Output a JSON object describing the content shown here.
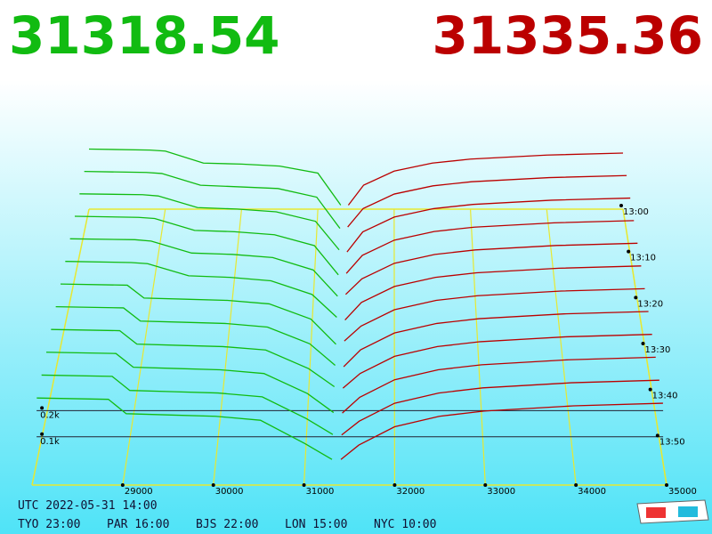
{
  "chart_data": {
    "type": "depth3d",
    "bid": 31318.54,
    "ask": 31335.36,
    "bid_color": "#11bb11",
    "ask_color": "#bb0000",
    "grid_color": "#e8e830",
    "xlim": [
      28000,
      35000
    ],
    "xticks": [
      29000,
      30000,
      31000,
      32000,
      33000,
      34000,
      35000
    ],
    "zticks": [
      {
        "value": 100,
        "label": "0.1k"
      },
      {
        "value": 200,
        "label": "0.2k"
      }
    ],
    "time_ticks": [
      "13:00",
      "13:10",
      "13:20",
      "13:30",
      "13:40",
      "13:50"
    ],
    "bid_prices": [
      28000,
      28800,
      29000,
      29500,
      30000,
      30500,
      31000,
      31300
    ],
    "ask_prices": [
      31400,
      31600,
      32000,
      32500,
      33000,
      34000,
      35000
    ],
    "snapshots": [
      {
        "bid": [
          300,
          295,
          290,
          230,
          225,
          215,
          180,
          20
        ],
        "ask": [
          20,
          120,
          190,
          230,
          250,
          270,
          280
        ]
      },
      {
        "bid": [
          295,
          290,
          285,
          228,
          220,
          212,
          170,
          18
        ],
        "ask": [
          25,
          115,
          185,
          225,
          245,
          265,
          275
        ]
      },
      {
        "bid": [
          290,
          286,
          280,
          225,
          218,
          205,
          160,
          25
        ],
        "ask": [
          15,
          110,
          180,
          220,
          240,
          260,
          270
        ]
      },
      {
        "bid": [
          285,
          280,
          275,
          220,
          214,
          200,
          150,
          15
        ],
        "ask": [
          22,
          105,
          175,
          215,
          235,
          255,
          265
        ]
      },
      {
        "bid": [
          280,
          276,
          270,
          216,
          210,
          196,
          140,
          22
        ],
        "ask": [
          30,
          100,
          170,
          210,
          230,
          250,
          260
        ]
      },
      {
        "bid": [
          275,
          270,
          265,
          212,
          205,
          190,
          130,
          30
        ],
        "ask": [
          18,
          95,
          165,
          205,
          225,
          245,
          255
        ]
      },
      {
        "bid": [
          270,
          265,
          210,
          205,
          200,
          185,
          120,
          12
        ],
        "ask": [
          26,
          90,
          160,
          200,
          220,
          240,
          250
        ]
      },
      {
        "bid": [
          265,
          260,
          205,
          200,
          195,
          180,
          110,
          20
        ],
        "ask": [
          14,
          85,
          155,
          195,
          215,
          235,
          245
        ]
      },
      {
        "bid": [
          260,
          255,
          200,
          195,
          190,
          176,
          100,
          26
        ],
        "ask": [
          20,
          80,
          150,
          190,
          210,
          230,
          240
        ]
      },
      {
        "bid": [
          255,
          250,
          195,
          190,
          185,
          170,
          90,
          14
        ],
        "ask": [
          12,
          75,
          145,
          185,
          205,
          225,
          235
        ]
      },
      {
        "bid": [
          250,
          245,
          190,
          185,
          180,
          165,
          80,
          18
        ],
        "ask": [
          16,
          70,
          140,
          180,
          200,
          220,
          230
        ]
      },
      {
        "bid": [
          245,
          240,
          185,
          180,
          175,
          160,
          70,
          10
        ],
        "ask": [
          10,
          65,
          135,
          175,
          195,
          215,
          225
        ]
      }
    ]
  },
  "footer": {
    "utc": "UTC 2022-05-31 14:00",
    "clocks": [
      "TYO 23:00",
      "PAR 16:00",
      "BJS 22:00",
      "LON 15:00",
      "NYC 10:00"
    ]
  }
}
